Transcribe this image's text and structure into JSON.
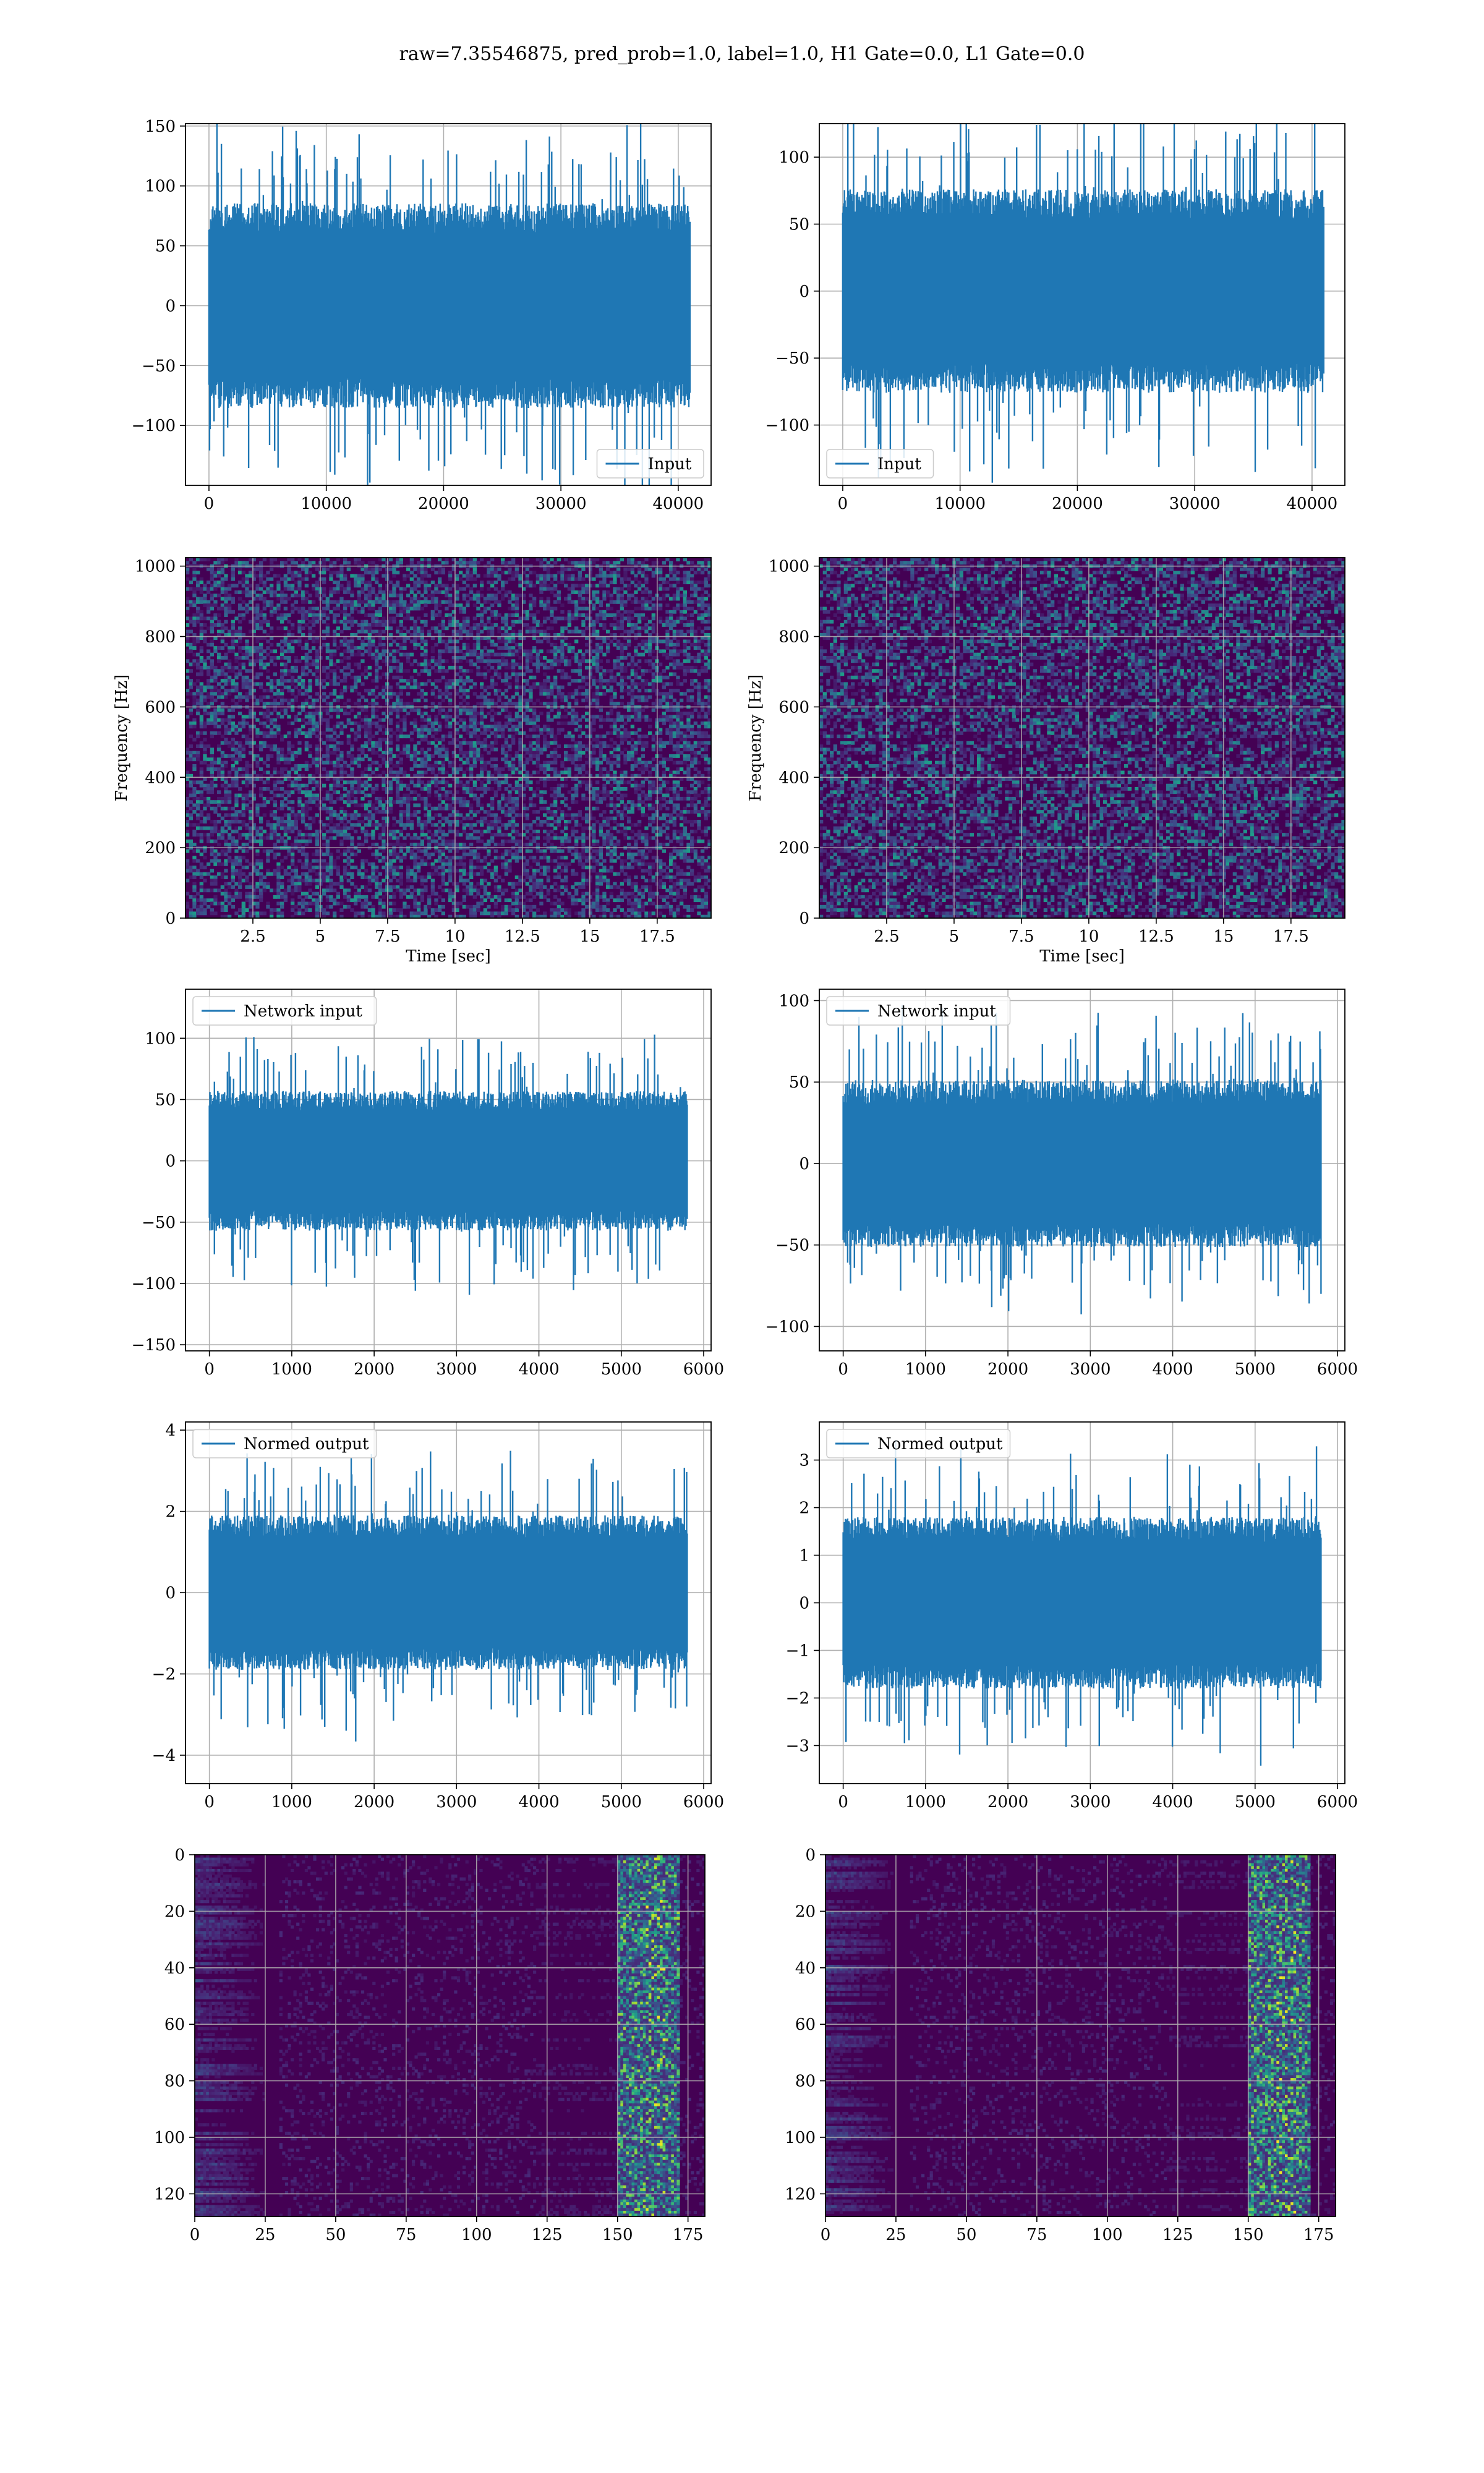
{
  "suptitle": "raw=7.35546875, pred_prob=1.0, label=1.0, H1 Gate=0.0, L1 Gate=0.0",
  "colors": {
    "line": "#1f77b4",
    "grid": "#b0b0b0",
    "viridis_dark": "#440154"
  },
  "chart_data": [
    {
      "id": "h1-input",
      "type": "line",
      "legend": "Input",
      "legend_loc": "lower-right",
      "xlim": [
        -2000,
        42800
      ],
      "ylim": [
        -150,
        152
      ],
      "amp": 45,
      "n": 41000,
      "xticks": [
        0,
        10000,
        20000,
        30000,
        40000
      ],
      "yticks": [
        -100,
        -50,
        0,
        50,
        100,
        150
      ],
      "xlabel": "",
      "ylabel": "",
      "grid": true,
      "seed": 11
    },
    {
      "id": "l1-input",
      "type": "line",
      "legend": "Input",
      "legend_loc": "lower-left",
      "xlim": [
        -2000,
        42800
      ],
      "ylim": [
        -145,
        125
      ],
      "amp": 40,
      "n": 41000,
      "xticks": [
        0,
        10000,
        20000,
        30000,
        40000
      ],
      "yticks": [
        -100,
        -50,
        0,
        50,
        100
      ],
      "xlabel": "",
      "ylabel": "",
      "grid": true,
      "seed": 23
    },
    {
      "id": "h1-spectrogram",
      "type": "heatmap",
      "mode": "spectrogram",
      "xlim": [
        0,
        19.5
      ],
      "ylim": [
        0,
        1024
      ],
      "xticks": [
        2.5,
        5.0,
        7.5,
        10.0,
        12.5,
        15.0,
        17.5
      ],
      "yticks": [
        0,
        200,
        400,
        600,
        800,
        1000
      ],
      "xlabel": "Time [sec]",
      "ylabel": "Frequency [Hz]",
      "grid": true,
      "seed": 5
    },
    {
      "id": "l1-spectrogram",
      "type": "heatmap",
      "mode": "spectrogram",
      "xlim": [
        0,
        19.5
      ],
      "ylim": [
        0,
        1024
      ],
      "xticks": [
        2.5,
        5.0,
        7.5,
        10.0,
        12.5,
        15.0,
        17.5
      ],
      "yticks": [
        0,
        200,
        400,
        600,
        800,
        1000
      ],
      "xlabel": "Time [sec]",
      "ylabel": "Frequency [Hz]",
      "grid": true,
      "seed": 9
    },
    {
      "id": "h1-network-input",
      "type": "line",
      "legend": "Network input",
      "legend_loc": "upper-left",
      "xlim": [
        -290,
        6090
      ],
      "ylim": [
        -155,
        140
      ],
      "amp": 30,
      "n": 5800,
      "xticks": [
        0,
        1000,
        2000,
        3000,
        4000,
        5000,
        6000
      ],
      "yticks": [
        -150,
        -100,
        -50,
        0,
        50,
        100
      ],
      "xlabel": "",
      "ylabel": "",
      "grid": true,
      "seed": 31
    },
    {
      "id": "l1-network-input",
      "type": "line",
      "legend": "Network input",
      "legend_loc": "upper-left",
      "xlim": [
        -290,
        6090
      ],
      "ylim": [
        -115,
        107
      ],
      "amp": 27,
      "n": 5800,
      "xticks": [
        0,
        1000,
        2000,
        3000,
        4000,
        5000,
        6000
      ],
      "yticks": [
        -100,
        -50,
        0,
        50,
        100
      ],
      "xlabel": "",
      "ylabel": "",
      "grid": true,
      "seed": 37
    },
    {
      "id": "h1-normed-output",
      "type": "line",
      "legend": "Normed output",
      "legend_loc": "upper-left",
      "xlim": [
        -290,
        6090
      ],
      "ylim": [
        -4.7,
        4.2
      ],
      "amp": 1.0,
      "n": 5800,
      "xticks": [
        0,
        1000,
        2000,
        3000,
        4000,
        5000,
        6000
      ],
      "yticks": [
        -4,
        -2,
        0,
        2,
        4
      ],
      "xlabel": "",
      "ylabel": "",
      "grid": true,
      "seed": 41
    },
    {
      "id": "l1-normed-output",
      "type": "line",
      "legend": "Normed output",
      "legend_loc": "upper-left",
      "xlim": [
        -290,
        6090
      ],
      "ylim": [
        -3.8,
        3.8
      ],
      "amp": 0.95,
      "n": 5800,
      "xticks": [
        0,
        1000,
        2000,
        3000,
        4000,
        5000,
        6000
      ],
      "yticks": [
        -3,
        -2,
        -1,
        0,
        1,
        2,
        3
      ],
      "xlabel": "",
      "ylabel": "",
      "grid": true,
      "seed": 43
    },
    {
      "id": "h1-feature-map",
      "type": "heatmap",
      "mode": "features",
      "xlim": [
        0,
        181
      ],
      "ylim": [
        128,
        0
      ],
      "xticks": [
        0,
        25,
        50,
        75,
        100,
        125,
        150,
        175
      ],
      "yticks": [
        0,
        20,
        40,
        60,
        80,
        100,
        120
      ],
      "xlabel": "",
      "ylabel": "",
      "grid": true,
      "seed": 51
    },
    {
      "id": "l1-feature-map",
      "type": "heatmap",
      "mode": "features",
      "xlim": [
        0,
        181
      ],
      "ylim": [
        128,
        0
      ],
      "xticks": [
        0,
        25,
        50,
        75,
        100,
        125,
        150,
        175
      ],
      "yticks": [
        0,
        20,
        40,
        60,
        80,
        100,
        120
      ],
      "xlabel": "",
      "ylabel": "",
      "grid": true,
      "seed": 57
    }
  ]
}
